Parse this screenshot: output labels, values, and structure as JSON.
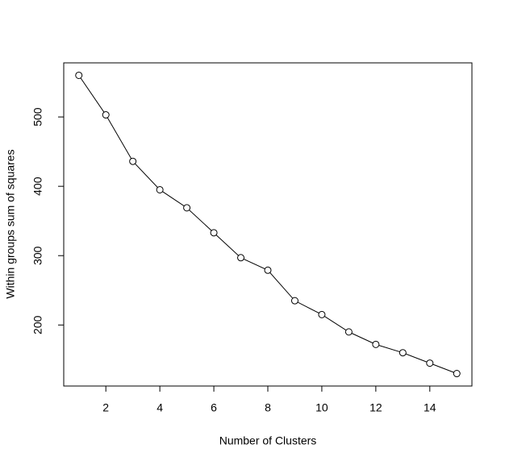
{
  "chart_data": {
    "type": "line",
    "x_label": "Number of Clusters",
    "y_label": "Within groups sum of squares",
    "x": [
      1,
      2,
      3,
      4,
      5,
      6,
      7,
      8,
      9,
      10,
      11,
      12,
      13,
      14,
      15
    ],
    "y": [
      560,
      503,
      436,
      395,
      369,
      333,
      297,
      279,
      235,
      215,
      190,
      172,
      160,
      145,
      130
    ],
    "color": "#000000",
    "xlim": [
      0.44,
      15.56
    ],
    "ylim": [
      112,
      578
    ],
    "xticks": [
      2,
      4,
      6,
      8,
      10,
      12,
      14
    ],
    "yticks": [
      200,
      300,
      400,
      500
    ]
  }
}
